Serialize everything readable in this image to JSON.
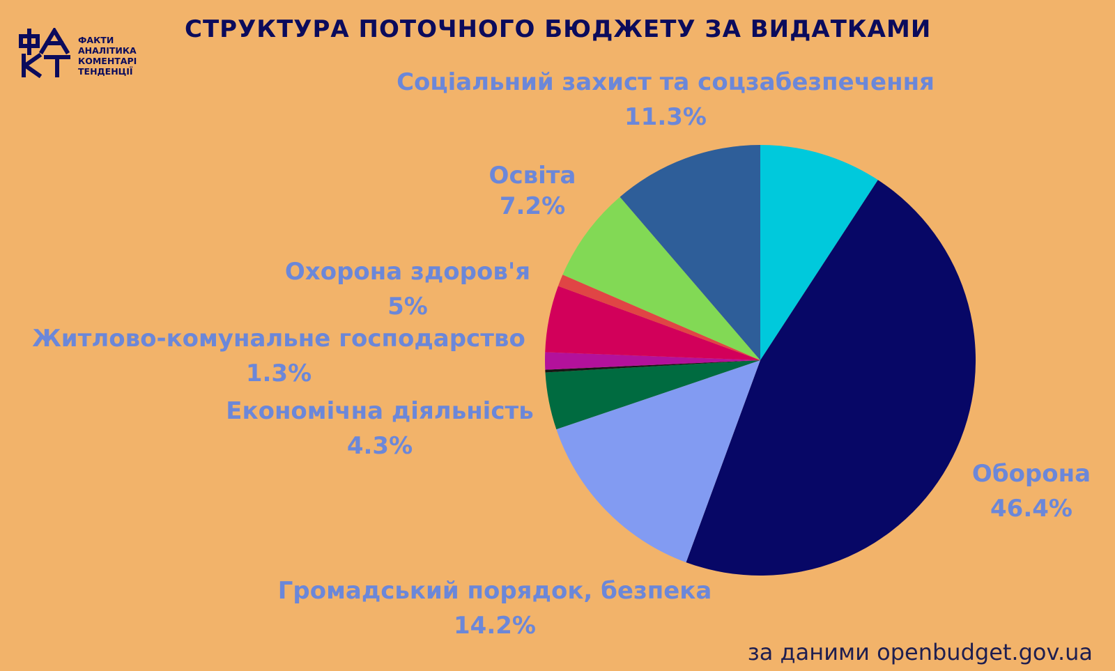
{
  "title": "СТРУКТУРА ПОТОЧНОГО БЮДЖЕТУ ЗА ВИДАТКАМИ",
  "logo": {
    "mark_icon": "fakt-logo-icon",
    "lines": [
      "ФАКТИ",
      "АНАЛІТИКА",
      "КОМЕНТАРІ",
      "ТЕНДЕНЦІЇ"
    ]
  },
  "source": "за даними openbudget.gov.ua",
  "chart_data": {
    "type": "pie",
    "start_angle_deg": 0,
    "direction": "clockwise",
    "slices": [
      {
        "label": "",
        "value": 9.2,
        "value_text": "",
        "color": "#00c9dc"
      },
      {
        "label": "Оборона",
        "value": 46.4,
        "value_text": "46.4%",
        "color": "#070766"
      },
      {
        "label": "Громадський порядок, безпека",
        "value": 14.2,
        "value_text": "14.2%",
        "color": "#829bf2"
      },
      {
        "label": "Економічна діяльність",
        "value": 4.3,
        "value_text": "4.3%",
        "color": "#006b40"
      },
      {
        "label": "",
        "value": 0.2,
        "value_text": "",
        "color": "#151515"
      },
      {
        "label": "Житлово-комунальне господарство",
        "value": 1.3,
        "value_text": "1.3%",
        "color": "#b3119b"
      },
      {
        "label": "Охорона здоров'я",
        "value": 5,
        "value_text": "5%",
        "color": "#d2005a"
      },
      {
        "label": "",
        "value": 0.9,
        "value_text": "",
        "color": "#e04545"
      },
      {
        "label": "Освіта",
        "value": 7.2,
        "value_text": "7.2%",
        "color": "#82d955"
      },
      {
        "label": "Соціальний захист та соцзабезпечення",
        "value": 11.3,
        "value_text": "11.3%",
        "color": "#2e5e99"
      }
    ],
    "label_color": "#6b87d9"
  }
}
